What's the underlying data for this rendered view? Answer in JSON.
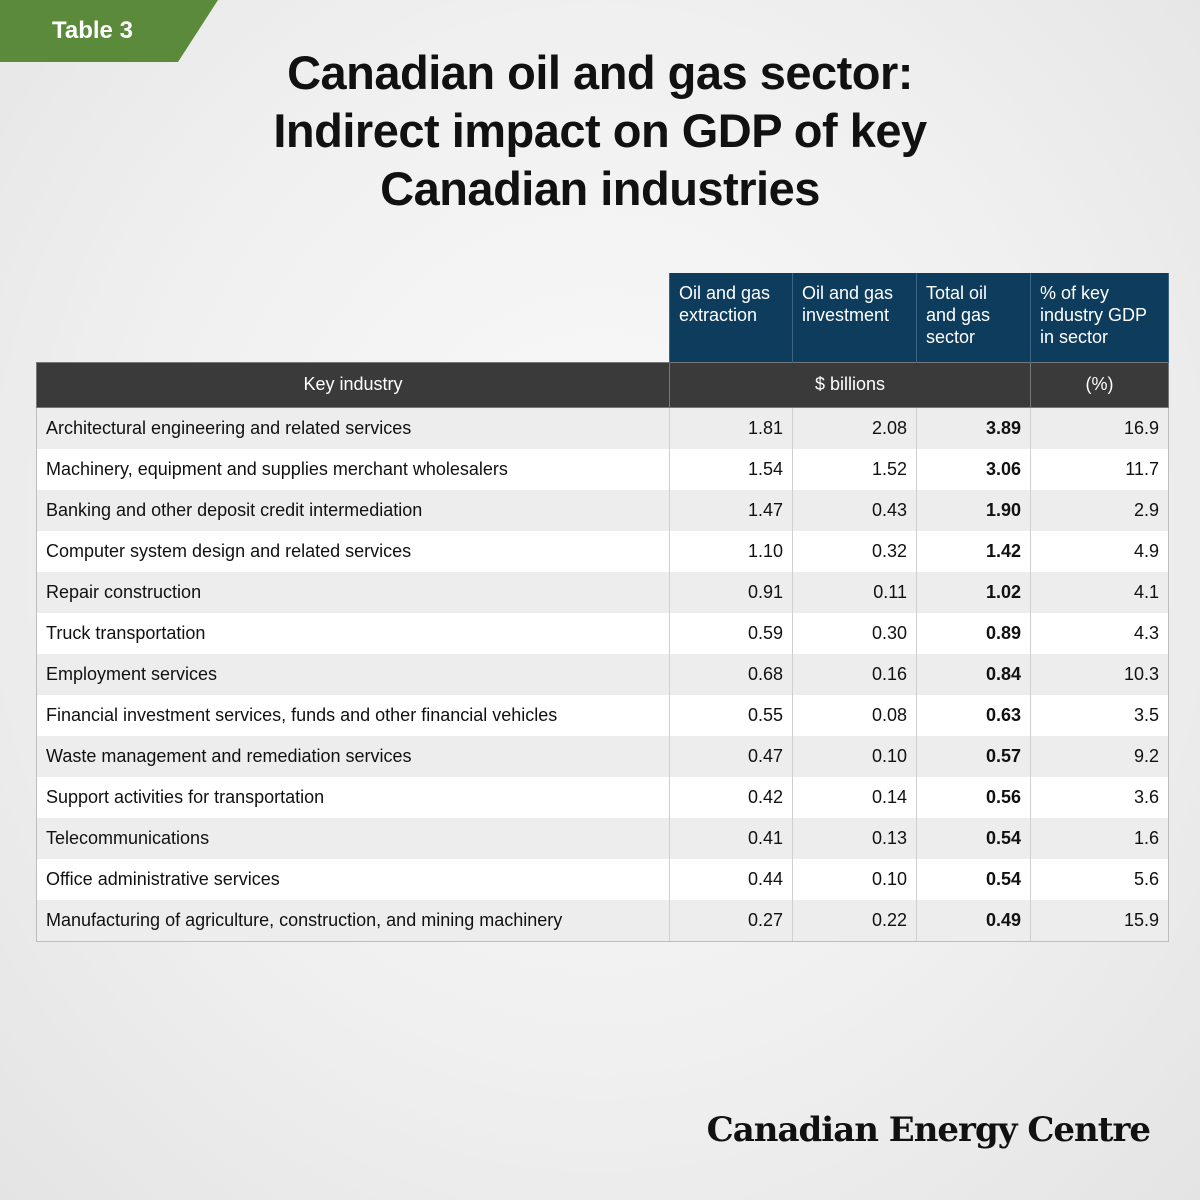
{
  "tag": "Table 3",
  "title_lines": [
    "Canadian oil and gas sector:",
    "Indirect impact on GDP of key",
    "Canadian industries"
  ],
  "table": {
    "column_headers": [
      "Oil and gas extraction",
      "Oil and gas investment",
      "Total oil and gas sector",
      "% of key industry GDP in sector"
    ],
    "row_header": "Key industry",
    "unit_billions": "$ billions",
    "unit_percent": "(%)",
    "rows": [
      {
        "industry": "Architectural engineering and related services",
        "extraction": "1.81",
        "investment": "2.08",
        "total": "3.89",
        "pct": "16.9"
      },
      {
        "industry": "Machinery, equipment and supplies merchant wholesalers",
        "extraction": "1.54",
        "investment": "1.52",
        "total": "3.06",
        "pct": "11.7"
      },
      {
        "industry": "Banking and other deposit credit intermediation",
        "extraction": "1.47",
        "investment": "0.43",
        "total": "1.90",
        "pct": "2.9"
      },
      {
        "industry": "Computer system design and related services",
        "extraction": "1.10",
        "investment": "0.32",
        "total": "1.42",
        "pct": "4.9"
      },
      {
        "industry": "Repair construction",
        "extraction": "0.91",
        "investment": "0.11",
        "total": "1.02",
        "pct": "4.1"
      },
      {
        "industry": "Truck transportation",
        "extraction": "0.59",
        "investment": "0.30",
        "total": "0.89",
        "pct": "4.3"
      },
      {
        "industry": "Employment services",
        "extraction": "0.68",
        "investment": "0.16",
        "total": "0.84",
        "pct": "10.3"
      },
      {
        "industry": "Financial investment services, funds and other financial vehicles",
        "extraction": "0.55",
        "investment": "0.08",
        "total": "0.63",
        "pct": "3.5"
      },
      {
        "industry": "Waste management and remediation services",
        "extraction": "0.47",
        "investment": "0.10",
        "total": "0.57",
        "pct": "9.2"
      },
      {
        "industry": "Support activities for transportation",
        "extraction": "0.42",
        "investment": "0.14",
        "total": "0.56",
        "pct": "3.6"
      },
      {
        "industry": "Telecommunications",
        "extraction": "0.41",
        "investment": "0.13",
        "total": "0.54",
        "pct": "1.6"
      },
      {
        "industry": "Office administrative services",
        "extraction": "0.44",
        "investment": "0.10",
        "total": "0.54",
        "pct": "5.6"
      },
      {
        "industry": "Manufacturing of agriculture, construction, and mining machinery",
        "extraction": "0.27",
        "investment": "0.22",
        "total": "0.49",
        "pct": "15.9"
      }
    ]
  },
  "brand": "Canadian Energy Centre",
  "colors": {
    "tag_green": "#5b8a3a",
    "header_blue": "#0e3c5c",
    "header_dark": "#3a3a3a"
  }
}
